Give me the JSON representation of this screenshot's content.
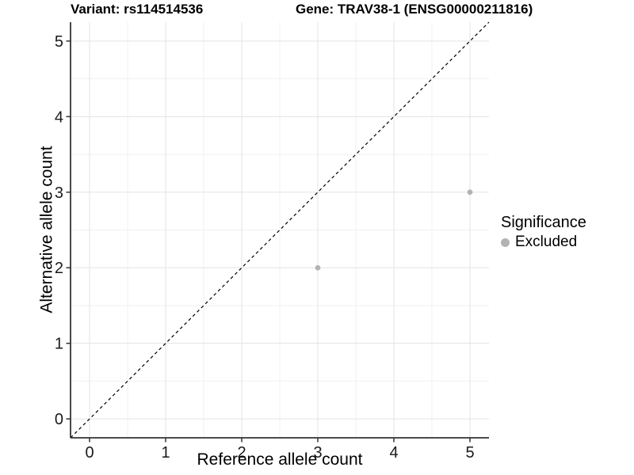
{
  "chart_data": {
    "type": "scatter",
    "titles": {
      "left": "Variant: rs114514536",
      "right": "Gene: TRAV38-1 (ENSG00000211816)"
    },
    "xlabel": "Reference allele count",
    "ylabel": "Alternative allele count",
    "xlim": [
      -0.25,
      5.25
    ],
    "ylim": [
      -0.25,
      5.25
    ],
    "xticks": [
      0,
      1,
      2,
      3,
      4,
      5
    ],
    "yticks": [
      0,
      1,
      2,
      3,
      4,
      5
    ],
    "minor_ticks": [
      0.5,
      1.5,
      2.5,
      3.5,
      4.5
    ],
    "grid": "major+minor",
    "series": [
      {
        "name": "Excluded",
        "color": "#b3b3b3",
        "points": [
          [
            3,
            2
          ],
          [
            5,
            3
          ]
        ]
      }
    ],
    "reference_line": {
      "type": "identity",
      "from": [
        -0.25,
        -0.25
      ],
      "to": [
        5.25,
        5.25
      ],
      "style": "dashed",
      "color": "#000000"
    },
    "legend": {
      "title": "Significance",
      "position": "right",
      "items": [
        {
          "label": "Excluded",
          "color": "#b3b3b3"
        }
      ]
    }
  },
  "colors": {
    "background": "#ffffff",
    "grid_major": "#e3e3e3",
    "grid_minor": "#f1f1f1",
    "axis_line": "#333333",
    "tick_text": "#1a1a1a",
    "title_text": "#000000",
    "point": "#b3b3b3",
    "dashed_line": "#000000"
  }
}
